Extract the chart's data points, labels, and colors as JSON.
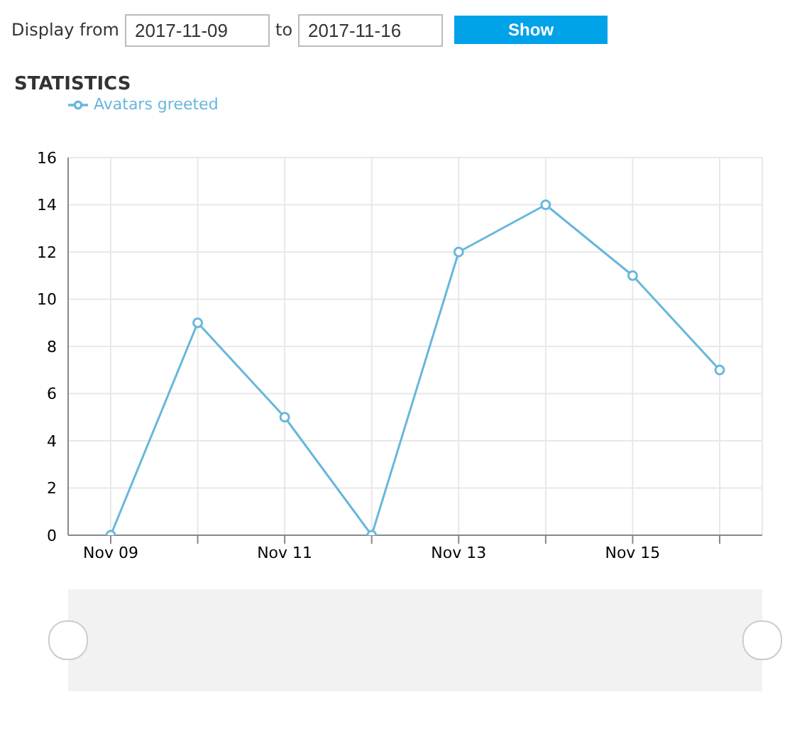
{
  "chart_data": {
    "type": "line",
    "title": "STATISTICS",
    "annotations": [
      "Display from",
      "2017-11-09",
      "to",
      "2017-11-16",
      "Show"
    ],
    "categories": [
      "Nov 09",
      null,
      "Nov 11",
      null,
      "Nov 13",
      null,
      "Nov 15",
      null
    ],
    "series": [
      {
        "name": "Avatars greeted",
        "color": "#67b7dc",
        "values": [
          0,
          9,
          5,
          0,
          12,
          14,
          11,
          7
        ]
      }
    ],
    "ylim": [
      0,
      16
    ],
    "yticks": [
      0,
      2,
      4,
      6,
      8,
      10,
      12,
      14,
      16
    ],
    "grid": true,
    "legend": "top left",
    "marker": "circle",
    "line_style": "solid"
  }
}
